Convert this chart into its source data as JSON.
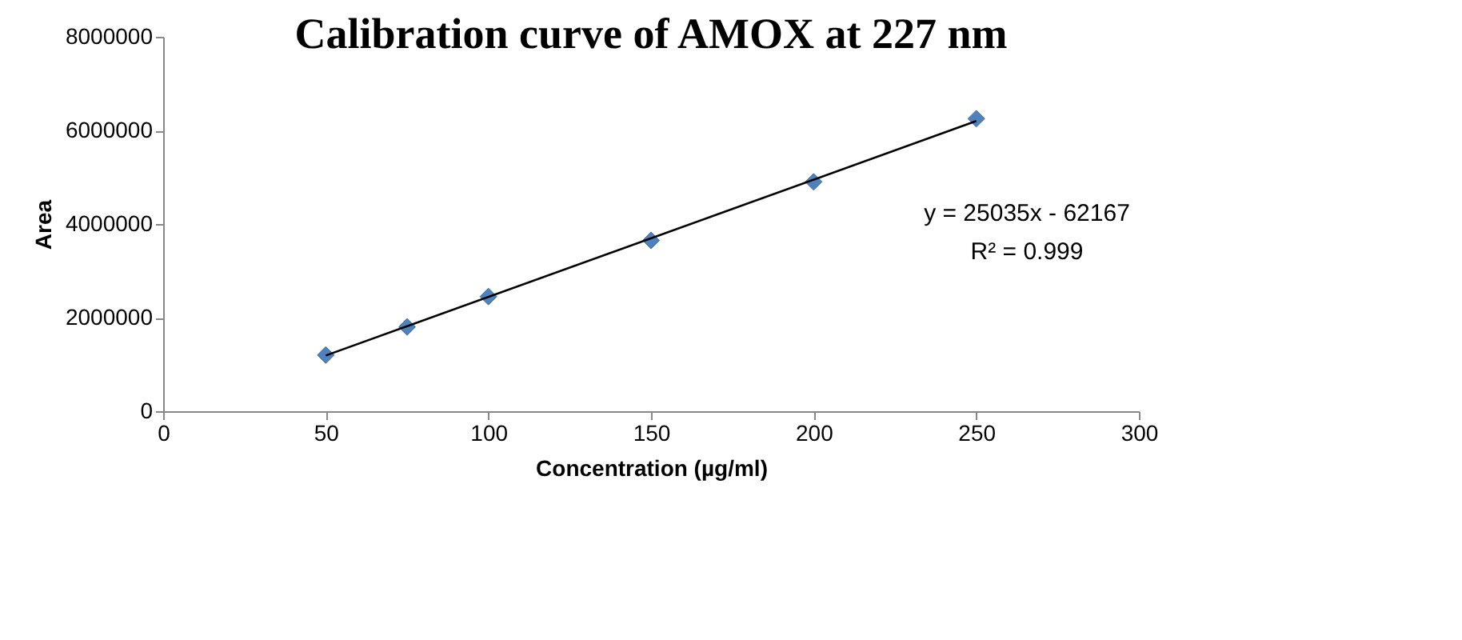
{
  "chart_data": {
    "type": "scatter",
    "title": "Calibration curve of AMOX at 227 nm",
    "xlabel": "Concentration (µg/ml)",
    "ylabel": "Area",
    "x": [
      50,
      75,
      100,
      150,
      200,
      250
    ],
    "series": [
      {
        "color": "#4f81bd",
        "values": [
          1200000,
          1800000,
          2450000,
          3650000,
          4900000,
          6250000
        ]
      },
      {
        "type": "line",
        "color": "#000000",
        "x": [
          50,
          250
        ],
        "values": [
          1190000,
          6200000
        ],
        "marker": "none"
      }
    ],
    "xlim": [
      0,
      300
    ],
    "xticks": [
      0,
      50,
      100,
      150,
      200,
      250,
      300
    ],
    "ylim": [
      0,
      8000000
    ],
    "yticks": [
      0,
      2000000,
      4000000,
      6000000,
      8000000
    ],
    "grid": false,
    "marker": "diamond",
    "annotations": [
      "y = 25035x - 62167",
      "R² = 0.999"
    ]
  }
}
